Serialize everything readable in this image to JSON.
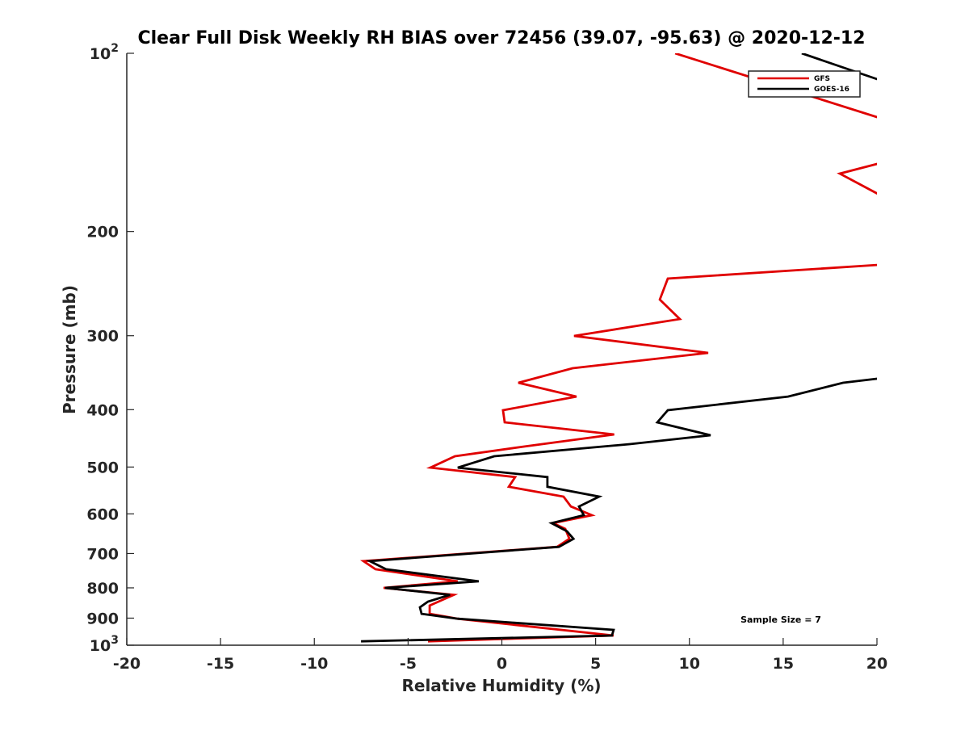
{
  "chart_data": {
    "type": "line",
    "title": "Clear Full Disk Weekly RH BIAS over 72456 (39.07, -95.63) @ 2020-12-12",
    "xlabel": "Relative Humidity (%)",
    "ylabel": "Pressure (mb)",
    "xlim": [
      -20,
      20
    ],
    "ylim": [
      100,
      1000
    ],
    "yscale": "log",
    "y_reversed": true,
    "x_ticks": [
      "-20",
      "-15",
      "-10",
      "-5",
      "0",
      "5",
      "10",
      "15",
      "20"
    ],
    "x_tick_values": [
      -20,
      -15,
      -10,
      -5,
      0,
      5,
      10,
      15,
      20
    ],
    "y_ticks": [
      {
        "value": 100,
        "base": "10",
        "exp": "2"
      },
      {
        "value": 200,
        "label": "200"
      },
      {
        "value": 300,
        "label": "300"
      },
      {
        "value": 400,
        "label": "400"
      },
      {
        "value": 500,
        "label": "500"
      },
      {
        "value": 600,
        "label": "600"
      },
      {
        "value": 700,
        "label": "700"
      },
      {
        "value": 800,
        "label": "800"
      },
      {
        "value": 900,
        "label": "900"
      },
      {
        "value": 1000,
        "base": "10",
        "exp": "3"
      }
    ],
    "legend_position": "top-right",
    "annotation": "Sample Size = 7",
    "series": [
      {
        "name": "GFS",
        "color": "#e00000",
        "points": [
          [
            9.24,
            100
          ],
          [
            24.9,
            143.5
          ],
          [
            24.9,
            147.6
          ],
          [
            20,
            153.8
          ],
          [
            18.02,
            159.7
          ],
          [
            24.9,
            208.6
          ],
          [
            24.9,
            222.1
          ],
          [
            20,
            227.8
          ],
          [
            8.85,
            240.2
          ],
          [
            8.42,
            260.7
          ],
          [
            9.49,
            281.2
          ],
          [
            3.85,
            300.3
          ],
          [
            11.0,
            320.7
          ],
          [
            3.77,
            340.5
          ],
          [
            0.88,
            360.3
          ],
          [
            3.98,
            380.1
          ],
          [
            0.06,
            400.9
          ],
          [
            0.15,
            420.2
          ],
          [
            5.99,
            440.5
          ],
          [
            1.18,
            461.8
          ],
          [
            -2.5,
            479.5
          ],
          [
            -3.81,
            501.2
          ],
          [
            0.71,
            520
          ],
          [
            0.37,
            540
          ],
          [
            3.29,
            561
          ],
          [
            3.68,
            583
          ],
          [
            4.8,
            603
          ],
          [
            2.73,
            622
          ],
          [
            3.38,
            636
          ],
          [
            3.6,
            661
          ],
          [
            2.95,
            682
          ],
          [
            -7.38,
            721
          ],
          [
            -6.74,
            744
          ],
          [
            -2.35,
            780
          ],
          [
            -6.31,
            800
          ],
          [
            -2.56,
            822
          ],
          [
            -3.85,
            857
          ],
          [
            -3.85,
            885
          ],
          [
            -2.35,
            902
          ],
          [
            5.96,
            963
          ],
          [
            -3.94,
            985
          ]
        ]
      },
      {
        "name": "GOES-16",
        "color": "#000000",
        "points": [
          [
            15.99,
            100
          ],
          [
            24.9,
            125
          ],
          [
            24.9,
            344.8
          ],
          [
            20,
            354.6
          ],
          [
            18.19,
            360.3
          ],
          [
            15.26,
            380.1
          ],
          [
            8.85,
            400.9
          ],
          [
            8.29,
            420.2
          ],
          [
            11.13,
            441.9
          ],
          [
            6.82,
            457.4
          ],
          [
            -0.41,
            479.5
          ],
          [
            -2.35,
            501.2
          ],
          [
            2.43,
            520
          ],
          [
            2.43,
            540
          ],
          [
            5.19,
            561
          ],
          [
            4.11,
            583
          ],
          [
            4.37,
            603
          ],
          [
            2.65,
            622
          ],
          [
            3.47,
            642
          ],
          [
            3.82,
            661
          ],
          [
            3.04,
            682
          ],
          [
            -7.04,
            721
          ],
          [
            -6.18,
            744
          ],
          [
            -1.23,
            780
          ],
          [
            -6.22,
            800
          ],
          [
            -2.77,
            822
          ],
          [
            -3.94,
            844
          ],
          [
            -4.37,
            863
          ],
          [
            -4.28,
            885
          ],
          [
            -2.35,
            902
          ],
          [
            5.96,
            942
          ],
          [
            5.87,
            963
          ],
          [
            -7.51,
            985
          ]
        ]
      }
    ]
  }
}
